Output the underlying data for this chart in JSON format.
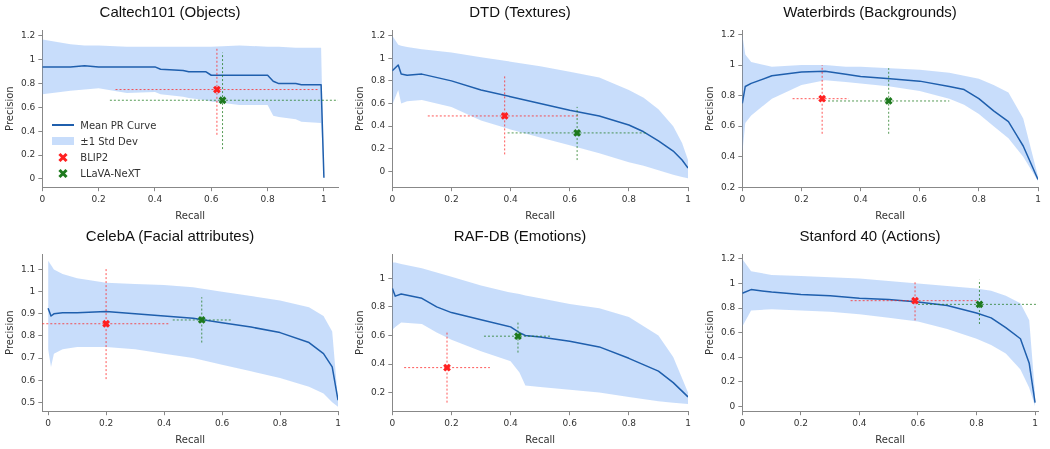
{
  "chart_data": [
    {
      "type": "line",
      "title": "Caltech101 (Objects)",
      "xlabel": "Recall",
      "ylabel": "Precision",
      "xlim": [
        0,
        1.05
      ],
      "xticks": [
        0,
        0.2,
        0.4,
        0.6,
        0.8,
        1
      ],
      "ylim": [
        -0.07,
        1.25
      ],
      "yticks": [
        0,
        0.2,
        0.4,
        0.6,
        0.8,
        1,
        1.2
      ],
      "legend": "bottom left",
      "marker": "cross",
      "annotations": [
        "±1 Std Dev"
      ],
      "series": [
        {
          "name": "Mean PR Curve",
          "marker": "none",
          "color": "#1f5fad",
          "x": [
            0,
            0.1,
            0.15,
            0.2,
            0.3,
            0.4,
            0.42,
            0.5,
            0.52,
            0.58,
            0.6,
            0.7,
            0.8,
            0.82,
            0.84,
            0.9,
            0.92,
            0.99,
            1
          ],
          "values": [
            0.94,
            0.94,
            0.95,
            0.94,
            0.94,
            0.94,
            0.92,
            0.91,
            0.9,
            0.9,
            0.87,
            0.87,
            0.87,
            0.82,
            0.8,
            0.8,
            0.79,
            0.79,
            0.01
          ],
          "lower": [
            0.71,
            0.74,
            0.75,
            0.76,
            0.72,
            0.73,
            0.71,
            0.69,
            0.68,
            0.66,
            0.65,
            0.62,
            0.62,
            0.53,
            0.52,
            0.5,
            0.48,
            0.47,
            0.01
          ],
          "upper": [
            1.17,
            1.13,
            1.12,
            1.12,
            1.11,
            1.11,
            1.11,
            1.11,
            1.11,
            1.11,
            1.11,
            1.12,
            1.11,
            1.11,
            1.11,
            1.1,
            1.1,
            1.1,
            0.01
          ]
        },
        {
          "name": "BLIP2",
          "type": "scatter",
          "color": "#ff2020",
          "x": [
            0.62
          ],
          "values": [
            0.75
          ],
          "errors": [
            [
              0.37,
              1.1
            ]
          ],
          "xerrors": [
            [
              0.26,
              0.98
            ]
          ]
        },
        {
          "name": "LLaVA-NeXT",
          "type": "scatter",
          "color": "#1e7a1e",
          "x": [
            0.64
          ],
          "values": [
            0.66
          ],
          "errors": [
            [
              0.25,
              1.06
            ]
          ],
          "xerrors": [
            [
              0.24,
              1.05
            ]
          ]
        }
      ]
    },
    {
      "type": "line",
      "title": "DTD (Textures)",
      "xlabel": "Recall",
      "ylabel": "Precision",
      "xlim": [
        0,
        1
      ],
      "xticks": [
        0,
        0.2,
        0.4,
        0.6,
        0.8,
        1
      ],
      "ylim": [
        -0.14,
        1.25
      ],
      "yticks": [
        0,
        0.2,
        0.4,
        0.6,
        0.8,
        1,
        1.2
      ],
      "marker": "cross",
      "series": [
        {
          "marker": "none",
          "color": "#1f5fad",
          "x": [
            0,
            0.02,
            0.03,
            0.05,
            0.1,
            0.2,
            0.3,
            0.4,
            0.5,
            0.6,
            0.7,
            0.8,
            0.85,
            0.9,
            0.95,
            0.98,
            1
          ],
          "values": [
            0.89,
            0.94,
            0.86,
            0.85,
            0.86,
            0.8,
            0.72,
            0.66,
            0.6,
            0.54,
            0.49,
            0.41,
            0.35,
            0.27,
            0.18,
            0.1,
            0.03
          ],
          "lower": [
            0.59,
            0.72,
            0.6,
            0.62,
            0.63,
            0.57,
            0.45,
            0.37,
            0.3,
            0.23,
            0.16,
            0.08,
            0.05,
            0.01,
            -0.03,
            -0.05,
            -0.06
          ],
          "upper": [
            1.2,
            1.12,
            1.11,
            1.1,
            1.08,
            1.05,
            1.01,
            0.97,
            0.93,
            0.88,
            0.83,
            0.72,
            0.65,
            0.55,
            0.4,
            0.25,
            0.1
          ]
        },
        {
          "type": "scatter",
          "color": "#ff2020",
          "x": [
            0.38
          ],
          "values": [
            0.49
          ],
          "errors": [
            [
              0.15,
              0.84
            ]
          ],
          "xerrors": [
            [
              0.12,
              0.63
            ]
          ]
        },
        {
          "type": "scatter",
          "color": "#1e7a1e",
          "x": [
            0.625
          ],
          "values": [
            0.34
          ],
          "errors": [
            [
              0.1,
              0.57
            ]
          ],
          "xerrors": [
            [
              0.39,
              0.86
            ]
          ]
        }
      ]
    },
    {
      "type": "line",
      "title": "Waterbirds (Backgrounds)",
      "xlabel": "Recall",
      "ylabel": "Precision",
      "xlim": [
        0,
        1
      ],
      "xticks": [
        0,
        0.2,
        0.4,
        0.6,
        0.8,
        1
      ],
      "ylim": [
        0.2,
        1.23
      ],
      "yticks": [
        0.2,
        0.4,
        0.6,
        0.8,
        1,
        1.2
      ],
      "marker": "cross",
      "series": [
        {
          "marker": "none",
          "color": "#1f5fad",
          "x": [
            0,
            0.01,
            0.03,
            0.1,
            0.2,
            0.28,
            0.35,
            0.4,
            0.5,
            0.6,
            0.7,
            0.75,
            0.8,
            0.85,
            0.9,
            0.95,
            1
          ],
          "values": [
            0.75,
            0.86,
            0.88,
            0.93,
            0.955,
            0.96,
            0.94,
            0.925,
            0.91,
            0.895,
            0.86,
            0.84,
            0.78,
            0.7,
            0.63,
            0.47,
            0.25
          ],
          "lower": [
            0.42,
            0.62,
            0.67,
            0.78,
            0.87,
            0.9,
            0.89,
            0.88,
            0.86,
            0.83,
            0.78,
            0.74,
            0.68,
            0.6,
            0.52,
            0.4,
            0.24
          ],
          "upper": [
            1.2,
            1.07,
            1.02,
            0.99,
            1.0,
            1.0,
            0.99,
            0.99,
            0.98,
            0.97,
            0.95,
            0.93,
            0.91,
            0.87,
            0.82,
            0.65,
            0.27
          ]
        },
        {
          "type": "scatter",
          "color": "#ff2020",
          "x": [
            0.27
          ],
          "values": [
            0.78
          ],
          "errors": [
            [
              0.55,
              1.0
            ]
          ],
          "xerrors": [
            [
              0.17,
              0.36
            ]
          ]
        },
        {
          "type": "scatter",
          "color": "#1e7a1e",
          "x": [
            0.495
          ],
          "values": [
            0.765
          ],
          "errors": [
            [
              0.55,
              0.98
            ]
          ],
          "xerrors": [
            [
              0.29,
              0.7
            ]
          ]
        }
      ]
    },
    {
      "type": "line",
      "title": "CelebA (Facial attributes)",
      "xlabel": "Recall",
      "ylabel": "Precision",
      "xlim": [
        -0.02,
        1
      ],
      "xticks": [
        0,
        0.2,
        0.4,
        0.6,
        0.8,
        1
      ],
      "ylim": [
        0.46,
        1.17
      ],
      "yticks": [
        0.5,
        0.6,
        0.7,
        0.8,
        0.9,
        1,
        1.1
      ],
      "marker": "cross",
      "series": [
        {
          "marker": "none",
          "color": "#1f5fad",
          "x": [
            0,
            0.01,
            0.02,
            0.05,
            0.1,
            0.2,
            0.3,
            0.4,
            0.5,
            0.6,
            0.7,
            0.8,
            0.9,
            0.95,
            0.98,
            1
          ],
          "values": [
            0.925,
            0.89,
            0.9,
            0.905,
            0.905,
            0.91,
            0.9,
            0.89,
            0.88,
            0.86,
            0.84,
            0.815,
            0.77,
            0.72,
            0.66,
            0.51
          ],
          "lower": [
            0.74,
            0.66,
            0.72,
            0.74,
            0.75,
            0.75,
            0.74,
            0.72,
            0.7,
            0.67,
            0.64,
            0.61,
            0.57,
            0.54,
            0.5,
            0.48
          ],
          "upper": [
            1.14,
            1.12,
            1.1,
            1.08,
            1.06,
            1.04,
            1.035,
            1.03,
            1.02,
            1.0,
            0.98,
            0.96,
            0.93,
            0.89,
            0.82,
            0.51
          ]
        },
        {
          "type": "scatter",
          "color": "#ff2020",
          "x": [
            0.2
          ],
          "values": [
            0.855
          ],
          "errors": [
            [
              0.605,
              1.11
            ]
          ],
          "xerrors": [
            [
              -0.02,
              0.42
            ]
          ]
        },
        {
          "type": "scatter",
          "color": "#1e7a1e",
          "x": [
            0.53
          ],
          "values": [
            0.872
          ],
          "errors": [
            [
              0.77,
              0.975
            ]
          ],
          "xerrors": [
            [
              0.43,
              0.63
            ]
          ]
        }
      ]
    },
    {
      "type": "line",
      "title": "RAF-DB (Emotions)",
      "xlabel": "Recall",
      "ylabel": "Precision",
      "xlim": [
        0,
        1
      ],
      "xticks": [
        0,
        0.2,
        0.4,
        0.6,
        0.8,
        1
      ],
      "ylim": [
        0.07,
        1.17
      ],
      "yticks": [
        0.2,
        0.4,
        0.6,
        0.8,
        1
      ],
      "marker": "cross",
      "series": [
        {
          "marker": "none",
          "color": "#1f5fad",
          "x": [
            0,
            0.01,
            0.03,
            0.1,
            0.15,
            0.2,
            0.3,
            0.4,
            0.43,
            0.45,
            0.5,
            0.6,
            0.7,
            0.8,
            0.9,
            0.95,
            1
          ],
          "values": [
            0.93,
            0.875,
            0.89,
            0.86,
            0.8,
            0.76,
            0.71,
            0.66,
            0.62,
            0.6,
            0.59,
            0.56,
            0.52,
            0.44,
            0.35,
            0.27,
            0.17
          ],
          "lower": [
            0.64,
            0.66,
            0.69,
            0.68,
            0.62,
            0.57,
            0.49,
            0.42,
            0.34,
            0.25,
            0.24,
            0.22,
            0.2,
            0.17,
            0.14,
            0.13,
            0.12
          ],
          "upper": [
            1.11,
            1.11,
            1.1,
            1.07,
            1.04,
            1.01,
            0.95,
            0.9,
            0.89,
            0.88,
            0.86,
            0.82,
            0.79,
            0.73,
            0.6,
            0.45,
            0.2
          ]
        },
        {
          "type": "scatter",
          "color": "#ff2020",
          "x": [
            0.185
          ],
          "values": [
            0.375
          ],
          "errors": [
            [
              0.13,
              0.62
            ]
          ],
          "xerrors": [
            [
              0.04,
              0.33
            ]
          ]
        },
        {
          "type": "scatter",
          "color": "#1e7a1e",
          "x": [
            0.425
          ],
          "values": [
            0.595
          ],
          "errors": [
            [
              0.48,
              0.7
            ]
          ],
          "xerrors": [
            [
              0.31,
              0.54
            ]
          ]
        }
      ]
    },
    {
      "type": "line",
      "title": "Stanford 40 (Actions)",
      "xlabel": "Recall",
      "ylabel": "Precision",
      "xlim": [
        0,
        1.01
      ],
      "xticks": [
        0,
        0.2,
        0.4,
        0.6,
        0.8,
        1
      ],
      "ylim": [
        -0.04,
        1.24
      ],
      "yticks": [
        0,
        0.2,
        0.4,
        0.6,
        0.8,
        1,
        1.2
      ],
      "marker": "cross",
      "series": [
        {
          "marker": "none",
          "color": "#1f5fad",
          "x": [
            0,
            0.03,
            0.1,
            0.2,
            0.3,
            0.4,
            0.5,
            0.6,
            0.7,
            0.8,
            0.85,
            0.9,
            0.95,
            0.98,
            1
          ],
          "values": [
            0.92,
            0.95,
            0.93,
            0.91,
            0.9,
            0.88,
            0.87,
            0.85,
            0.82,
            0.76,
            0.72,
            0.64,
            0.55,
            0.35,
            0.03
          ],
          "lower": [
            0.65,
            0.78,
            0.79,
            0.78,
            0.77,
            0.75,
            0.72,
            0.69,
            0.63,
            0.55,
            0.5,
            0.43,
            0.3,
            0.15,
            0.0
          ],
          "upper": [
            1.2,
            1.1,
            1.07,
            1.06,
            1.05,
            1.04,
            1.02,
            1.0,
            0.98,
            0.96,
            0.94,
            0.9,
            0.84,
            0.7,
            0.1
          ]
        },
        {
          "type": "scatter",
          "color": "#ff2020",
          "x": [
            0.59
          ],
          "values": [
            0.86
          ],
          "errors": [
            [
              0.7,
              1.02
            ]
          ],
          "xerrors": [
            [
              0.37,
              0.8
            ]
          ]
        },
        {
          "type": "scatter",
          "color": "#1e7a1e",
          "x": [
            0.81
          ],
          "values": [
            0.83
          ],
          "errors": [
            [
              0.67,
              1.03
            ]
          ],
          "xerrors": [
            [
              0.6,
              1.01
            ]
          ]
        }
      ]
    }
  ]
}
